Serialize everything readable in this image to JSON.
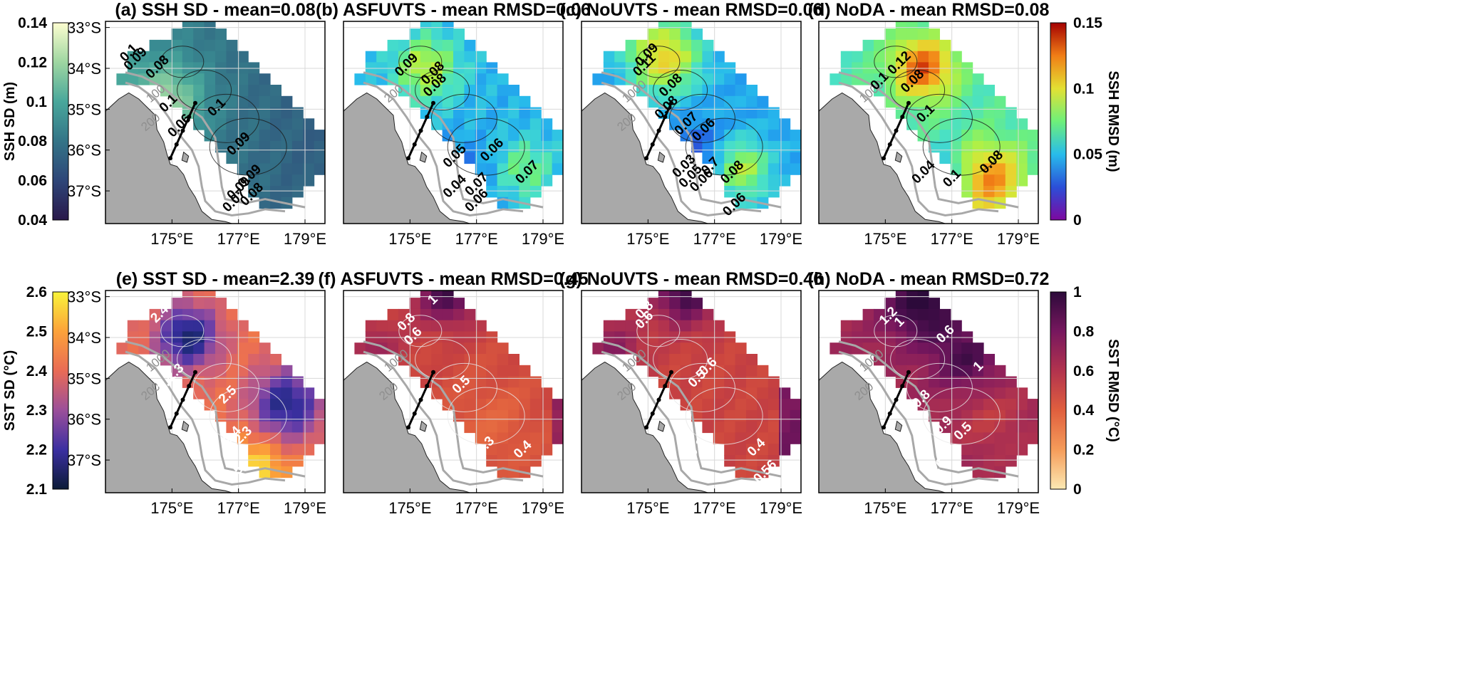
{
  "chart_data": [
    {
      "type": "heatmap",
      "panel": "(a)",
      "title": "(a) SSH SD - mean=0.08",
      "xlabel": "",
      "ylabel": "",
      "x_ticks": [
        "175°E",
        "177°E",
        "179°E"
      ],
      "y_ticks": [
        "33°S",
        "34°S",
        "35°S",
        "36°S",
        "37°S"
      ],
      "colormap": "deep",
      "clim": [
        0.04,
        0.14
      ],
      "mean": 0.08,
      "contour_labels": [
        "0.1",
        "0.09",
        "0.08",
        "0.1",
        "0.09",
        "0.1",
        "0.06",
        "0.09",
        "0.09",
        "0.08",
        "0.07"
      ],
      "isobath_labels": [
        "100",
        "200"
      ]
    },
    {
      "type": "heatmap",
      "panel": "(b)",
      "title": "(b) ASFUVTS - mean RMSD=0.06",
      "x_ticks": [
        "175°E",
        "177°E",
        "179°E"
      ],
      "colormap": "turbo",
      "clim": [
        0,
        0.15
      ],
      "mean": 0.06,
      "contour_labels": [
        "0.09",
        "0.08",
        "0.08",
        "0.05",
        "0.06",
        "0.04",
        "0.07",
        "0.06",
        "0.07"
      ],
      "isobath_labels": [
        "200"
      ]
    },
    {
      "type": "heatmap",
      "panel": "(c)",
      "title": "(c) NoUVTS - mean RMSD=0.06",
      "x_ticks": [
        "175°E",
        "177°E",
        "179°E"
      ],
      "colormap": "turbo",
      "clim": [
        0,
        0.15
      ],
      "mean": 0.06,
      "contour_labels": [
        "0.09",
        "0.11",
        "0.08",
        "0.08",
        "0.07",
        "0.06",
        "0.03",
        "0.05",
        "0.06",
        "0.7",
        "0.08",
        "0.06"
      ],
      "isobath_labels": [
        "1000",
        "200"
      ]
    },
    {
      "type": "heatmap",
      "panel": "(d)",
      "title": "(d) NoDA - mean RMSD=0.08",
      "x_ticks": [
        "175°E",
        "177°E",
        "179°E"
      ],
      "colormap": "turbo",
      "clim": [
        0,
        0.15
      ],
      "mean": 0.08,
      "contour_labels": [
        "0.12",
        "0.1",
        "0.08",
        "0.1",
        "0.04",
        "0.1",
        "0.08"
      ],
      "isobath_labels": [
        "1000"
      ]
    },
    {
      "type": "heatmap",
      "panel": "(e)",
      "title": "(e) SST SD - mean=2.39",
      "x_ticks": [
        "175°E",
        "177°E",
        "179°E"
      ],
      "y_ticks": [
        "33°S",
        "34°S",
        "35°S",
        "36°S",
        "37°S"
      ],
      "colormap": "plasma",
      "clim": [
        2.1,
        2.6
      ],
      "mean": 2.39,
      "contour_labels": [
        "2.4",
        "2.3",
        "2.4",
        "2.5",
        "2.4",
        "2.3",
        "2.5"
      ],
      "isobath_labels": [
        "1000",
        "200"
      ]
    },
    {
      "type": "heatmap",
      "panel": "(f)",
      "title": "(f) ASFUVTS - mean RMSD=0.45",
      "x_ticks": [
        "175°E",
        "177°E",
        "179°E"
      ],
      "colormap": "magma_r",
      "clim": [
        0,
        1
      ],
      "mean": 0.45,
      "contour_labels": [
        "1",
        "0.8",
        "0.6",
        "0.5",
        "0.3",
        "0.4"
      ],
      "isobath_labels": [
        "1000",
        "200"
      ]
    },
    {
      "type": "heatmap",
      "panel": "(g)",
      "title": "(g) NoUVTS - mean RMSD=0.46",
      "x_ticks": [
        "175°E",
        "177°E",
        "179°E"
      ],
      "colormap": "magma_r",
      "clim": [
        0,
        1
      ],
      "mean": 0.46,
      "contour_labels": [
        "0.8",
        "0.6",
        "0.6",
        "0.5",
        "0.3",
        "0.4",
        "0.56"
      ],
      "isobath_labels": [
        "1000",
        "200"
      ]
    },
    {
      "type": "heatmap",
      "panel": "(h)",
      "title": "(h) NoDA - mean RMSD=0.72",
      "x_ticks": [
        "175°E",
        "177°E",
        "179°E"
      ],
      "colormap": "magma_r",
      "clim": [
        0,
        1
      ],
      "mean": 0.72,
      "contour_labels": [
        "1.2",
        "1",
        "0.6",
        "1",
        "0.8",
        "0.9",
        "0.5",
        "0.6"
      ],
      "isobath_labels": [
        "1000",
        "200"
      ]
    }
  ],
  "colorbars": [
    {
      "name": "ssh-sd-colorbar",
      "label": "SSH SD (m)",
      "ticks": [
        "0.14",
        "0.12",
        "0.1",
        "0.08",
        "0.06",
        "0.04"
      ],
      "colors": [
        "#fdfed0",
        "#9ed6a1",
        "#49a79b",
        "#347487",
        "#2e4678",
        "#29184a"
      ]
    },
    {
      "name": "ssh-rmsd-colorbar",
      "label": "SSH RMSD (m)",
      "ticks": [
        "0.15",
        "0.1",
        "0.05",
        "0"
      ],
      "colors": [
        "#a40101",
        "#f17e16",
        "#e3e033",
        "#6ef07a",
        "#28bceb",
        "#2b4fd8",
        "#7d08a0"
      ]
    },
    {
      "name": "sst-sd-colorbar",
      "label": "SST SD (°C)",
      "ticks": [
        "2.6",
        "2.5",
        "2.4",
        "2.3",
        "2.2",
        "2.1"
      ],
      "colors": [
        "#f9f43a",
        "#fca23a",
        "#e96b55",
        "#9b4f9a",
        "#3b2fa1",
        "#0c1b37"
      ]
    },
    {
      "name": "sst-rmsd-colorbar",
      "label": "SST RMSD (°C)",
      "ticks": [
        "1",
        "0.8",
        "0.6",
        "0.4",
        "0.2",
        "0"
      ],
      "colors": [
        "#2c0a3a",
        "#77175e",
        "#b2334e",
        "#e05f3e",
        "#f59c5a",
        "#fbe9b3"
      ]
    }
  ]
}
